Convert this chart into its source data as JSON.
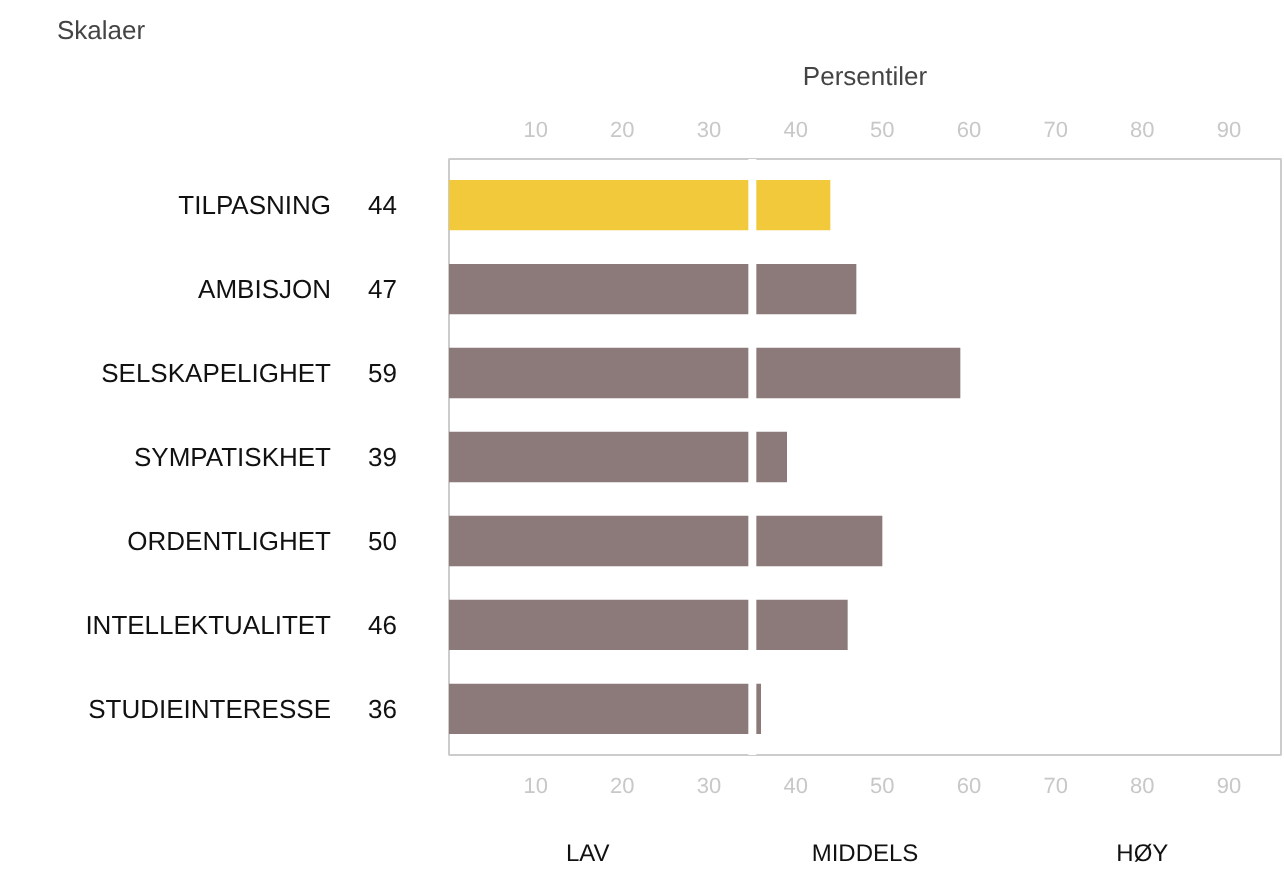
{
  "chart_data": {
    "type": "bar",
    "orientation": "horizontal",
    "ylabel": "Skalaer",
    "x2label": "Persentiler",
    "categories": [
      "TILPASNING",
      "AMBISJON",
      "SELSKAPELIGHET",
      "SYMPATISKHET",
      "ORDENTLIGHET",
      "INTELLEKTUALITET",
      "STUDIEINTERESSE"
    ],
    "values": [
      44,
      47,
      59,
      39,
      50,
      46,
      36
    ],
    "colors": [
      "#f2c93a",
      "#8c7a7a",
      "#8c7a7a",
      "#8c7a7a",
      "#8c7a7a",
      "#8c7a7a",
      "#8c7a7a"
    ],
    "data_labels": true,
    "xlim": [
      0,
      96
    ],
    "xticks": [
      10,
      20,
      30,
      40,
      50,
      60,
      70,
      80,
      90
    ],
    "x2lim": [
      0,
      96
    ],
    "x2ticks": [
      10,
      20,
      30,
      40,
      50,
      60,
      70,
      80,
      90
    ],
    "ref_lines": [
      {
        "axis": "x",
        "value": 35,
        "color": "#ffffff"
      }
    ],
    "annotations": [
      "LAV",
      "MIDDELS",
      "HØY"
    ],
    "grid": false
  }
}
